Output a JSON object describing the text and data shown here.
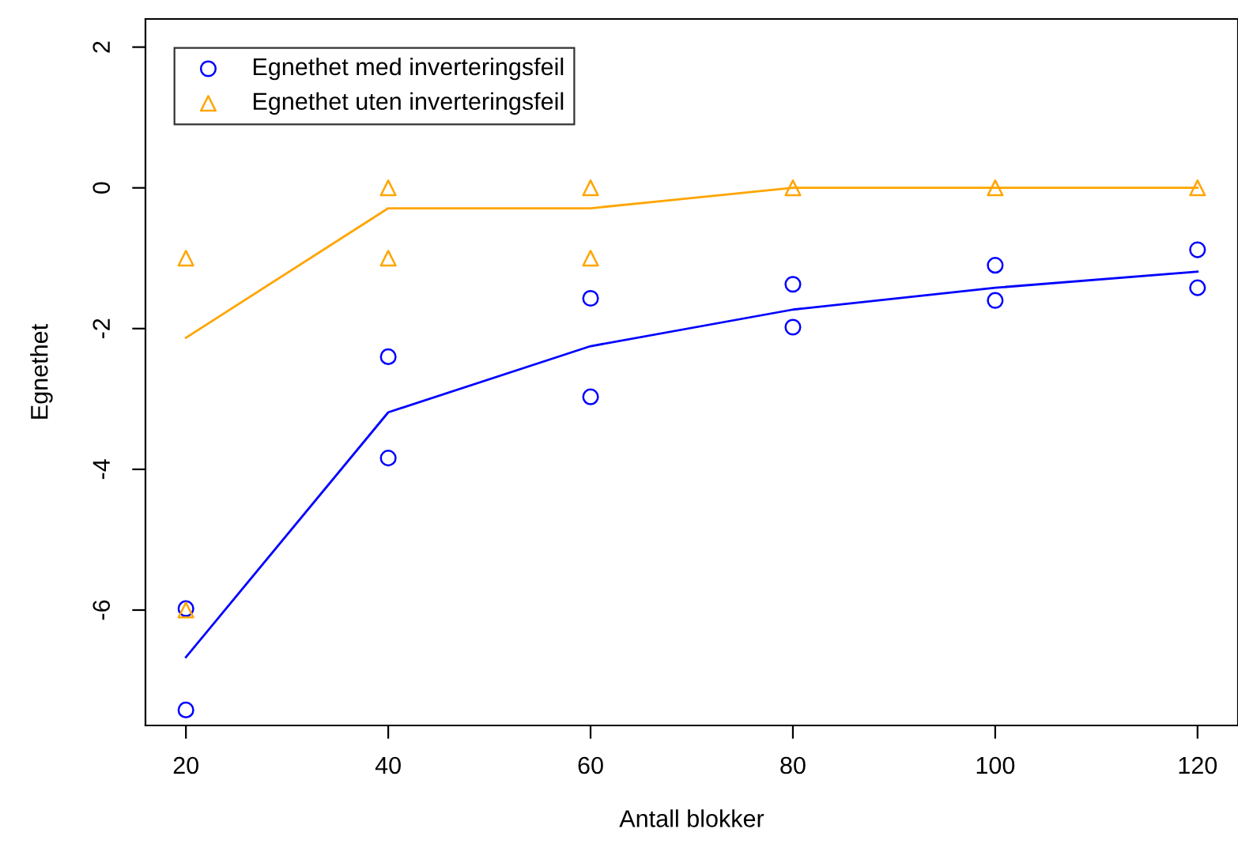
{
  "chart_data": {
    "type": "scatter",
    "xlabel": "Antall blokker",
    "ylabel": "Egnethet",
    "xlim": [
      16,
      124
    ],
    "ylim": [
      -7.64,
      2.4
    ],
    "xticks": [
      20,
      40,
      60,
      80,
      100,
      120
    ],
    "yticks": [
      -6,
      -4,
      -2,
      0,
      2
    ],
    "grid": false,
    "legend": "top left",
    "series": [
      {
        "name": "Egnethet med inverteringsfeil",
        "marker": "circle",
        "color": "#0000ff",
        "x": [
          20,
          20,
          40,
          40,
          60,
          60,
          80,
          80,
          100,
          100,
          120,
          120
        ],
        "values": [
          -5.98,
          -7.42,
          -2.4,
          -3.84,
          -1.57,
          -2.97,
          -1.37,
          -1.98,
          -1.1,
          -1.6,
          -0.88,
          -1.42
        ]
      },
      {
        "name": "Egnethet uten inverteringsfeil",
        "marker": "triangle",
        "color": "#ffa500",
        "x": [
          20,
          20,
          40,
          40,
          60,
          60,
          80,
          100,
          120
        ],
        "values": [
          -1,
          -6,
          0,
          -1,
          0,
          -1,
          0,
          0,
          0
        ]
      },
      {
        "type": "line",
        "color": "#0000ff",
        "x": [
          20,
          40,
          60,
          80,
          100,
          120
        ],
        "values": [
          -6.67,
          -3.19,
          -2.25,
          -1.73,
          -1.42,
          -1.19
        ]
      },
      {
        "type": "line",
        "color": "#ffa500",
        "x": [
          20,
          40,
          60,
          80,
          100,
          120
        ],
        "values": [
          -2.13,
          -0.29,
          -0.29,
          0,
          0,
          0
        ]
      }
    ]
  }
}
